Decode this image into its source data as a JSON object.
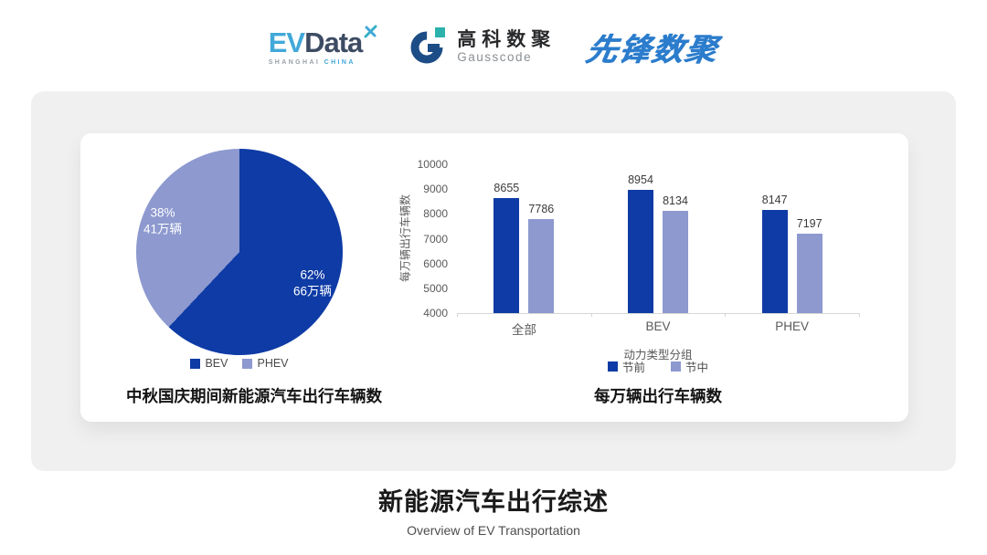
{
  "header": {
    "evdata_logo": {
      "ev": "EV",
      "data": "Data",
      "subtitle_left": "SHANGHAI",
      "subtitle_right": "CHINA"
    },
    "gausscode_logo": {
      "name_cn": "高科数聚",
      "name_en": "Gausscode"
    },
    "xianfeng_logo": {
      "name": "先锋数聚"
    }
  },
  "colors": {
    "primary_dark": "#0e3ba5",
    "primary_light": "#8d99cf",
    "panel_bg": "#f0f0f1",
    "axis_line": "#d6d6d6",
    "tick_text": "#595959"
  },
  "chart_data": [
    {
      "type": "pie",
      "title": "中秋国庆期间新能源汽车出行车辆数",
      "start_angle_deg": 0,
      "legend_position": "bottom",
      "slices": [
        {
          "label": "BEV",
          "percent": 62,
          "percent_label": "62%",
          "value_label": "66万辆",
          "color": "#0e3ba5"
        },
        {
          "label": "PHEV",
          "percent": 38,
          "percent_label": "38%",
          "value_label": "41万辆",
          "color": "#8d99cf"
        }
      ]
    },
    {
      "type": "bar",
      "title": "每万辆出行车辆数",
      "categories": [
        "全部",
        "BEV",
        "PHEV"
      ],
      "series": [
        {
          "name": "节前",
          "color": "#0e3ba5",
          "values": [
            8655,
            8954,
            8147
          ]
        },
        {
          "name": "节中",
          "color": "#8d99cf",
          "values": [
            7786,
            8134,
            7197
          ]
        }
      ],
      "xlabel": "动力类型分组",
      "ylabel": "每万辆出行车辆数",
      "ylim": [
        4000,
        10000
      ],
      "ytick_step": 1000,
      "grid": false,
      "legend_position": "bottom"
    }
  ],
  "footer": {
    "title": "新能源汽车出行综述",
    "subtitle": "Overview of EV Transportation"
  }
}
